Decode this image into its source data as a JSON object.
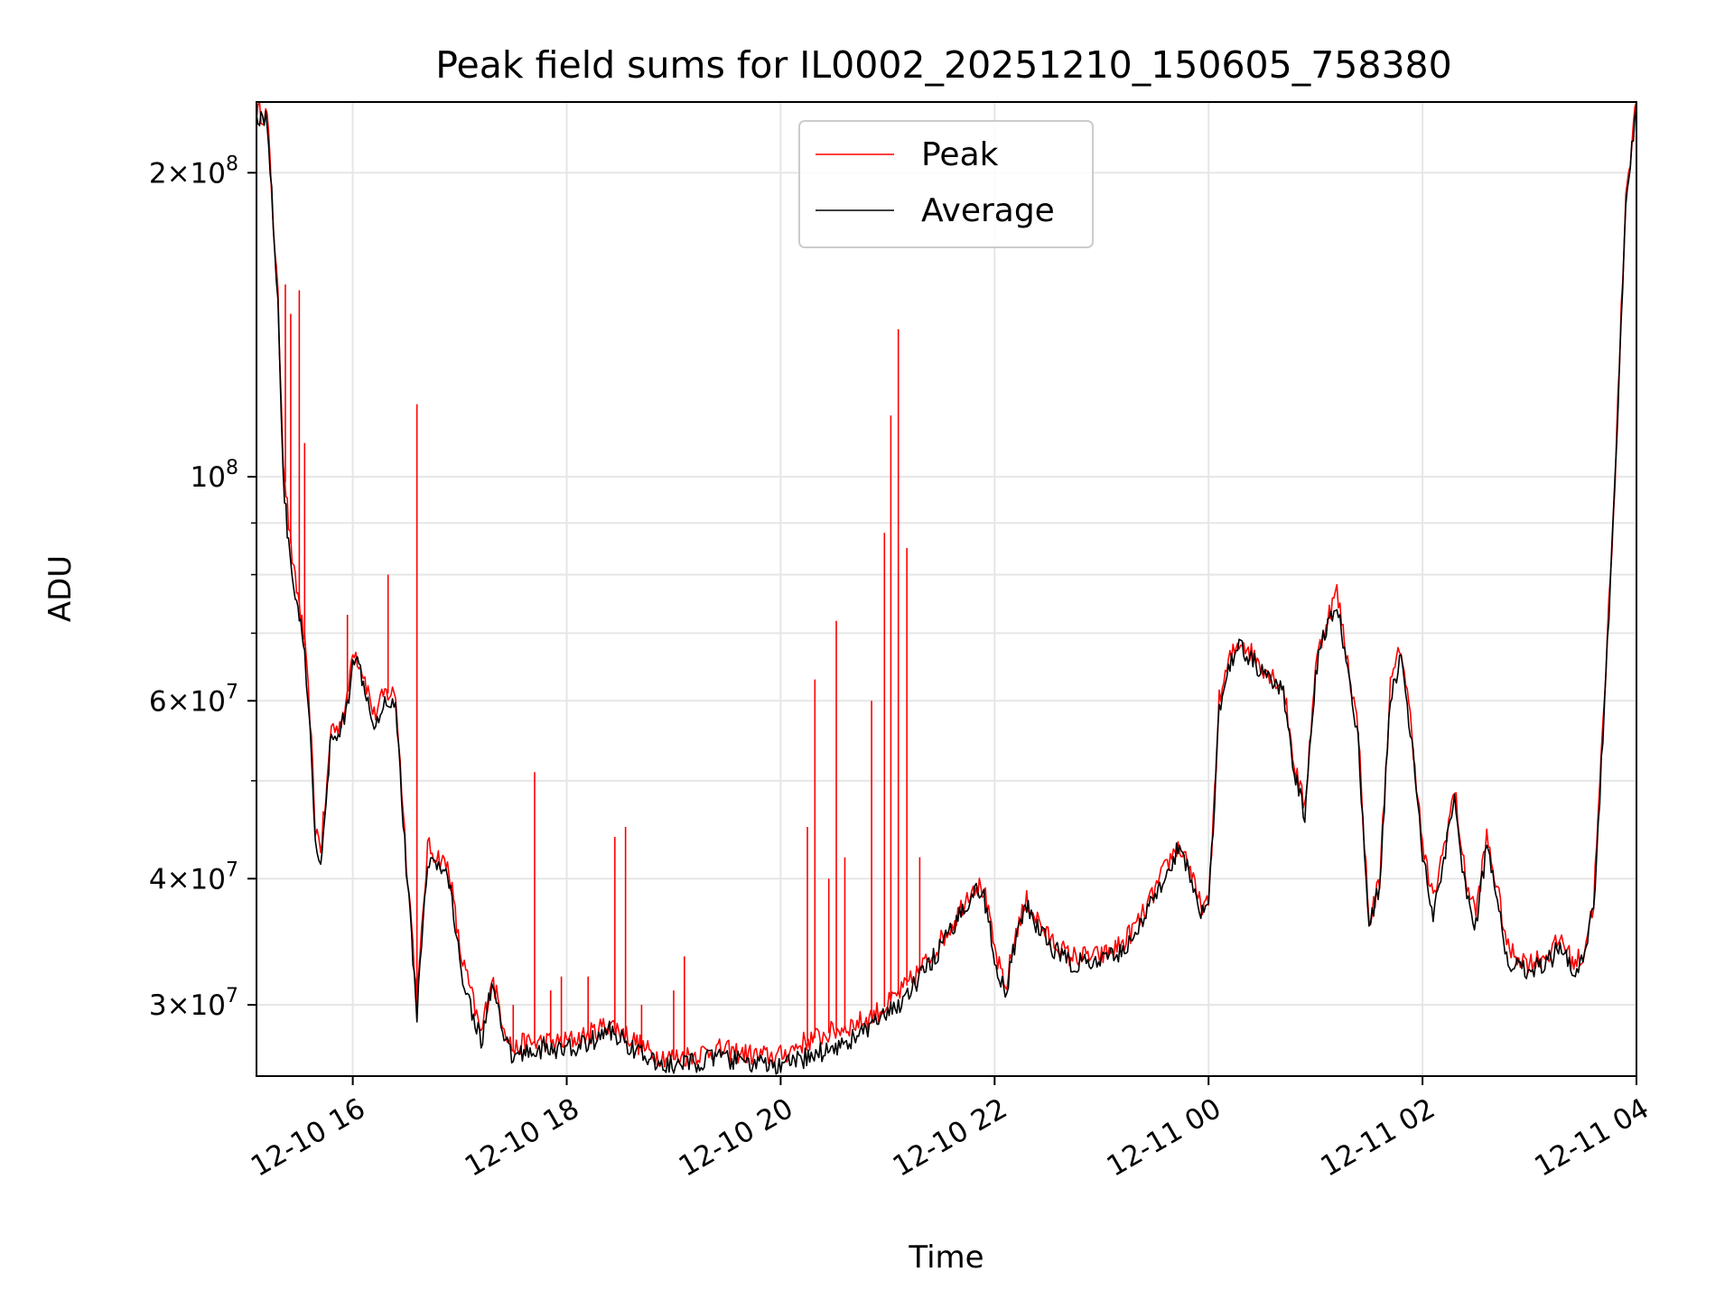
{
  "chart_data": {
    "type": "line",
    "title": "Peak field sums for IL0002_20251210_150605_758380",
    "xlabel": "Time",
    "ylabel": "ADU",
    "yscale": "log",
    "ylim": [
      25500000,
      235000000
    ],
    "xlim_hours": [
      15.1,
      28.0
    ],
    "grid": true,
    "legend_position": "upper center",
    "x_ticks": [
      {
        "hour": 16,
        "label": "12-10 16"
      },
      {
        "hour": 18,
        "label": "12-10 18"
      },
      {
        "hour": 20,
        "label": "12-10 20"
      },
      {
        "hour": 22,
        "label": "12-10 22"
      },
      {
        "hour": 24,
        "label": "12-11 00"
      },
      {
        "hour": 26,
        "label": "12-11 02"
      },
      {
        "hour": 28,
        "label": "12-11 04"
      }
    ],
    "y_ticks": [
      {
        "value": 30000000,
        "mant": "3",
        "exp": "7"
      },
      {
        "value": 40000000,
        "mant": "4",
        "exp": "7"
      },
      {
        "value": 60000000,
        "mant": "6",
        "exp": "7"
      },
      {
        "value": 100000000,
        "mant": "",
        "exp": "8"
      },
      {
        "value": 200000000,
        "mant": "2",
        "exp": "8"
      }
    ],
    "y_minor_ticks": [
      50000000,
      70000000,
      80000000,
      90000000
    ],
    "series": [
      {
        "name": "Peak",
        "color": "#ff0000",
        "x": [
          15.1,
          15.2,
          15.3,
          15.35,
          15.4,
          15.45,
          15.5,
          15.55,
          15.6,
          15.65,
          15.7,
          15.75,
          15.8,
          15.85,
          15.95,
          16.0,
          16.1,
          16.2,
          16.3,
          16.4,
          16.5,
          16.55,
          16.6,
          16.7,
          16.8,
          16.9,
          17.0,
          17.1,
          17.2,
          17.3,
          17.4,
          17.5,
          17.6,
          17.7,
          17.8,
          17.9,
          18.0,
          18.2,
          18.4,
          18.6,
          18.8,
          19.0,
          19.2,
          19.4,
          19.6,
          19.8,
          20.0,
          20.2,
          20.4,
          20.6,
          20.8,
          21.0,
          21.2,
          21.4,
          21.6,
          21.8,
          21.9,
          22.0,
          22.1,
          22.2,
          22.3,
          22.5,
          22.7,
          23.0,
          23.2,
          23.4,
          23.6,
          23.7,
          23.8,
          23.9,
          24.0,
          24.1,
          24.2,
          24.3,
          24.5,
          24.7,
          24.8,
          24.9,
          25.0,
          25.1,
          25.2,
          25.4,
          25.5,
          25.6,
          25.7,
          25.8,
          25.9,
          26.0,
          26.1,
          26.2,
          26.3,
          26.4,
          26.5,
          26.6,
          26.7,
          26.8,
          27.0,
          27.2,
          27.3,
          27.4,
          27.5,
          27.6,
          27.7,
          27.8,
          27.9,
          28.0
        ],
        "y": [
          230000000,
          228000000,
          150000000,
          105000000,
          90000000,
          80000000,
          75000000,
          68000000,
          58000000,
          45000000,
          43000000,
          48000000,
          57000000,
          56000000,
          60000000,
          68000000,
          64000000,
          58000000,
          61000000,
          61000000,
          42000000,
          36000000,
          30000000,
          43000000,
          42000000,
          41000000,
          34000000,
          31000000,
          28000000,
          32000000,
          29000000,
          27000000,
          27500000,
          27500000,
          27600000,
          27500000,
          27600000,
          28000000,
          28800000,
          27800000,
          26800000,
          26600000,
          26800000,
          27100000,
          26900000,
          26700000,
          26700000,
          27500000,
          28000000,
          28500000,
          29000000,
          30000000,
          31500000,
          33500000,
          36000000,
          39500000,
          39000000,
          34000000,
          31000000,
          35500000,
          38000000,
          35000000,
          33500000,
          33500000,
          34500000,
          37000000,
          41000000,
          43000000,
          42000000,
          38000000,
          37500000,
          60000000,
          66000000,
          69000000,
          65000000,
          62000000,
          52000000,
          47000000,
          65000000,
          72000000,
          77000000,
          56000000,
          36000000,
          40000000,
          62000000,
          68000000,
          56000000,
          43000000,
          38000000,
          43000000,
          49000000,
          40000000,
          37000000,
          44000000,
          39000000,
          34000000,
          33000000,
          33800000,
          35000000,
          33000000,
          33500000,
          38000000,
          60000000,
          100000000,
          190000000,
          235000000
        ]
      },
      {
        "name": "Average",
        "color": "#000000",
        "x": [
          15.1,
          15.2,
          15.3,
          15.35,
          15.4,
          15.45,
          15.5,
          15.55,
          15.6,
          15.65,
          15.7,
          15.75,
          15.8,
          15.85,
          15.95,
          16.0,
          16.1,
          16.2,
          16.3,
          16.4,
          16.5,
          16.55,
          16.6,
          16.7,
          16.8,
          16.9,
          17.0,
          17.1,
          17.2,
          17.3,
          17.4,
          17.5,
          17.6,
          17.7,
          17.8,
          17.9,
          18.0,
          18.2,
          18.4,
          18.6,
          18.8,
          19.0,
          19.2,
          19.4,
          19.6,
          19.8,
          20.0,
          20.2,
          20.4,
          20.6,
          20.8,
          21.0,
          21.2,
          21.4,
          21.6,
          21.8,
          21.9,
          22.0,
          22.1,
          22.2,
          22.3,
          22.5,
          22.7,
          23.0,
          23.2,
          23.4,
          23.6,
          23.7,
          23.8,
          23.9,
          24.0,
          24.1,
          24.2,
          24.3,
          24.5,
          24.7,
          24.8,
          24.9,
          25.0,
          25.1,
          25.2,
          25.4,
          25.5,
          25.6,
          25.7,
          25.8,
          25.9,
          26.0,
          26.1,
          26.2,
          26.3,
          26.4,
          26.5,
          26.6,
          26.7,
          26.8,
          27.0,
          27.2,
          27.3,
          27.4,
          27.5,
          27.6,
          27.7,
          27.8,
          27.9,
          28.0
        ],
        "y": [
          228000000,
          226000000,
          150000000,
          100000000,
          85000000,
          78000000,
          73000000,
          66000000,
          56000000,
          43000000,
          41500000,
          47000000,
          56000000,
          55000000,
          59000000,
          67000000,
          63000000,
          57000000,
          60000000,
          60000000,
          41000000,
          35000000,
          29500000,
          42000000,
          41000000,
          40000000,
          33000000,
          30000000,
          27500000,
          31500000,
          28000000,
          26500000,
          27000000,
          27000000,
          27200000,
          27000000,
          27100000,
          27500000,
          28300000,
          27300000,
          26300000,
          26100000,
          26300000,
          26600000,
          26400000,
          26200000,
          26000000,
          26500000,
          27000000,
          27500000,
          28300000,
          29300000,
          30800000,
          33000000,
          35500000,
          39000000,
          38500000,
          33500000,
          30500000,
          35000000,
          37500000,
          34500000,
          33000000,
          33000000,
          34000000,
          36500000,
          40500000,
          42500000,
          41500000,
          37500000,
          37000000,
          59000000,
          65000000,
          68000000,
          64000000,
          61000000,
          51000000,
          46000000,
          64000000,
          71000000,
          75000000,
          55000000,
          35500000,
          39500000,
          61000000,
          66000000,
          55000000,
          42000000,
          37000000,
          42000000,
          48000000,
          39000000,
          36000000,
          43000000,
          38000000,
          33000000,
          32500000,
          33300000,
          34500000,
          32500000,
          33000000,
          37500000,
          59000000,
          99000000,
          188000000,
          233000000
        ]
      }
    ],
    "peak_spikes": [
      {
        "x": 15.37,
        "y": 155000000
      },
      {
        "x": 15.42,
        "y": 145000000
      },
      {
        "x": 15.5,
        "y": 153000000
      },
      {
        "x": 15.55,
        "y": 108000000
      },
      {
        "x": 15.95,
        "y": 73000000
      },
      {
        "x": 16.33,
        "y": 80000000
      },
      {
        "x": 16.6,
        "y": 118000000
      },
      {
        "x": 17.0,
        "y": 34000000
      },
      {
        "x": 17.5,
        "y": 30000000
      },
      {
        "x": 17.7,
        "y": 51000000
      },
      {
        "x": 17.85,
        "y": 31000000
      },
      {
        "x": 17.95,
        "y": 32000000
      },
      {
        "x": 18.2,
        "y": 32000000
      },
      {
        "x": 18.45,
        "y": 44000000
      },
      {
        "x": 18.55,
        "y": 45000000
      },
      {
        "x": 18.7,
        "y": 30000000
      },
      {
        "x": 19.0,
        "y": 31000000
      },
      {
        "x": 19.1,
        "y": 33500000
      },
      {
        "x": 20.25,
        "y": 45000000
      },
      {
        "x": 20.32,
        "y": 63000000
      },
      {
        "x": 20.45,
        "y": 40000000
      },
      {
        "x": 20.52,
        "y": 72000000
      },
      {
        "x": 20.6,
        "y": 42000000
      },
      {
        "x": 20.85,
        "y": 60000000
      },
      {
        "x": 20.97,
        "y": 88000000
      },
      {
        "x": 21.03,
        "y": 115000000
      },
      {
        "x": 21.1,
        "y": 140000000
      },
      {
        "x": 21.18,
        "y": 85000000
      },
      {
        "x": 21.3,
        "y": 42000000
      }
    ]
  }
}
